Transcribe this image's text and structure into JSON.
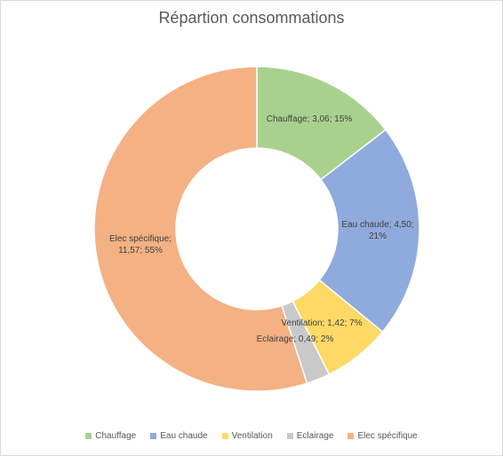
{
  "chart_data": {
    "type": "pie",
    "title": "Répartion consommations",
    "slices": [
      {
        "name": "Chauffage",
        "value": 3.06,
        "percent": "15%",
        "label_lines": [
          "Chauffage; 3,06; 15%"
        ],
        "color": "#a9d18e"
      },
      {
        "name": "Eau chaude",
        "value": 4.5,
        "percent": "21%",
        "label_lines": [
          "Eau chaude; 4,50;",
          "21%"
        ],
        "color": "#8faadc"
      },
      {
        "name": "Ventilation",
        "value": 1.42,
        "percent": "7%",
        "label_lines": [
          "Ventilation; 1,42; 7%"
        ],
        "color": "#ffd966"
      },
      {
        "name": "Eclairage",
        "value": 0.49,
        "percent": "2%",
        "label_lines": [
          "Eclairage; 0,49; 2%"
        ],
        "color": "#c9c9c9"
      },
      {
        "name": "Elec spécifique",
        "value": 11.57,
        "percent": "55%",
        "label_lines": [
          "Elec spécifique;",
          "11,57; 55%"
        ],
        "color": "#f4b183"
      }
    ],
    "legend_position": "bottom"
  }
}
